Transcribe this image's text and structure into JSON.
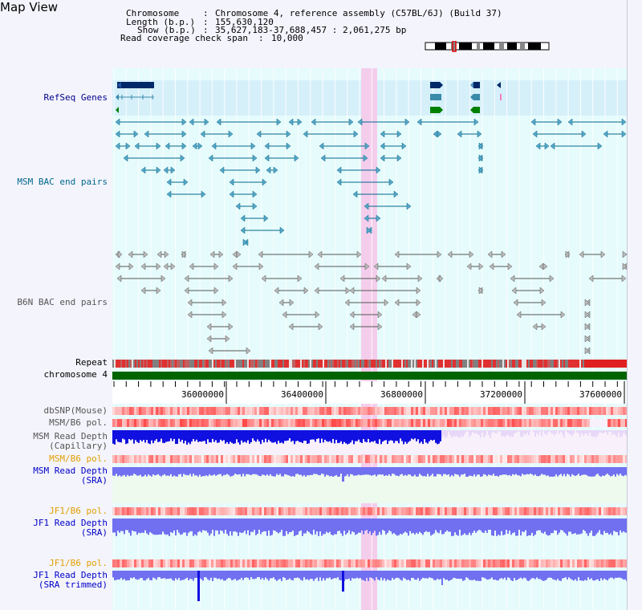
{
  "app": {
    "title": "Map View"
  },
  "header": {
    "chromosome_key": "Chromosome",
    "chromosome_value": "Chromosome 4, reference assembly (C57BL/6J) (Build 37)",
    "length_key": "Length (b.p.)",
    "length_value": "155,630,120",
    "show_key": "Show (b.p.)",
    "show_value": "35,627,183-37,688,457 : 2,061,275 bp",
    "coverage_key": "Read coverage check span",
    "coverage_value": "10,000"
  },
  "tracks": {
    "refseq": "RefSeq Genes",
    "msm_bac": "MSM BAC end pairs",
    "b6n_bac": "B6N BAC end pairs",
    "repeat": "Repeat",
    "chromosome": "chromosome 4",
    "dbsnp": "dbSNP(Mouse)",
    "msm_pol": "MSM/B6 pol.",
    "msm_depth_cap_1": "MSM Read Depth",
    "msm_depth_cap_2": "(Capillary)",
    "msm_pol_2": "MSM/B6 pol.",
    "msm_depth_sra_1": "MSM Read Depth",
    "msm_depth_sra_2": "(SRA)",
    "jf1_pol": "JF1/B6 pol.",
    "jf1_depth_1": "JF1 Read Depth",
    "jf1_depth_2": "(SRA)",
    "jf1_pol_2": "JF1/B6 pol.",
    "jf1_trim_1": "JF1 Read Depth",
    "jf1_trim_2": "(SRA trimmed)"
  },
  "axis": {
    "ticks": [
      "36000000",
      "36400000",
      "36800000",
      "37200000",
      "37600000"
    ]
  },
  "colors": {
    "highlight": "#f4cdec",
    "refseq_band": "#d6f0fa",
    "main_bg": "#e6fbfb",
    "chromosome_bar": "#006400",
    "depth_blue": "#1010e0",
    "depth_lightblue": "#7070f0",
    "pol_red": "#ff3030",
    "pol_pink": "#ffb4b4"
  }
}
